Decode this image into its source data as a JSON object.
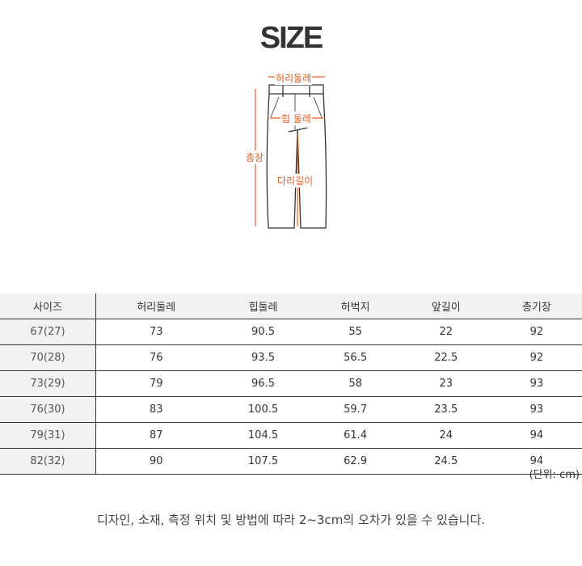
{
  "title": "SIZE",
  "diagram": {
    "waist": "허리둘레",
    "hip": "힙 둘레",
    "total_length": "총장",
    "inseam": "다리길이",
    "accent_color": "#ef5a1c"
  },
  "table": {
    "headers": [
      "사이즈",
      "허리둘레",
      "힙둘레",
      "허벅지",
      "앞길이",
      "총기장"
    ],
    "rows": [
      [
        "67(27)",
        "73",
        "90.5",
        "55",
        "22",
        "92"
      ],
      [
        "70(28)",
        "76",
        "93.5",
        "56.5",
        "22.5",
        "92"
      ],
      [
        "73(29)",
        "79",
        "96.5",
        "58",
        "23",
        "93"
      ],
      [
        "76(30)",
        "83",
        "100.5",
        "59.7",
        "23.5",
        "93"
      ],
      [
        "79(31)",
        "87",
        "104.5",
        "61.4",
        "24",
        "94"
      ],
      [
        "82(32)",
        "90",
        "107.5",
        "62.9",
        "24.5",
        "94"
      ]
    ]
  },
  "unit": "(단위: cm)",
  "note": "디자인, 소재, 측정 위치 및 방법에 따라 2~3cm의 오차가 있을 수 있습니다."
}
